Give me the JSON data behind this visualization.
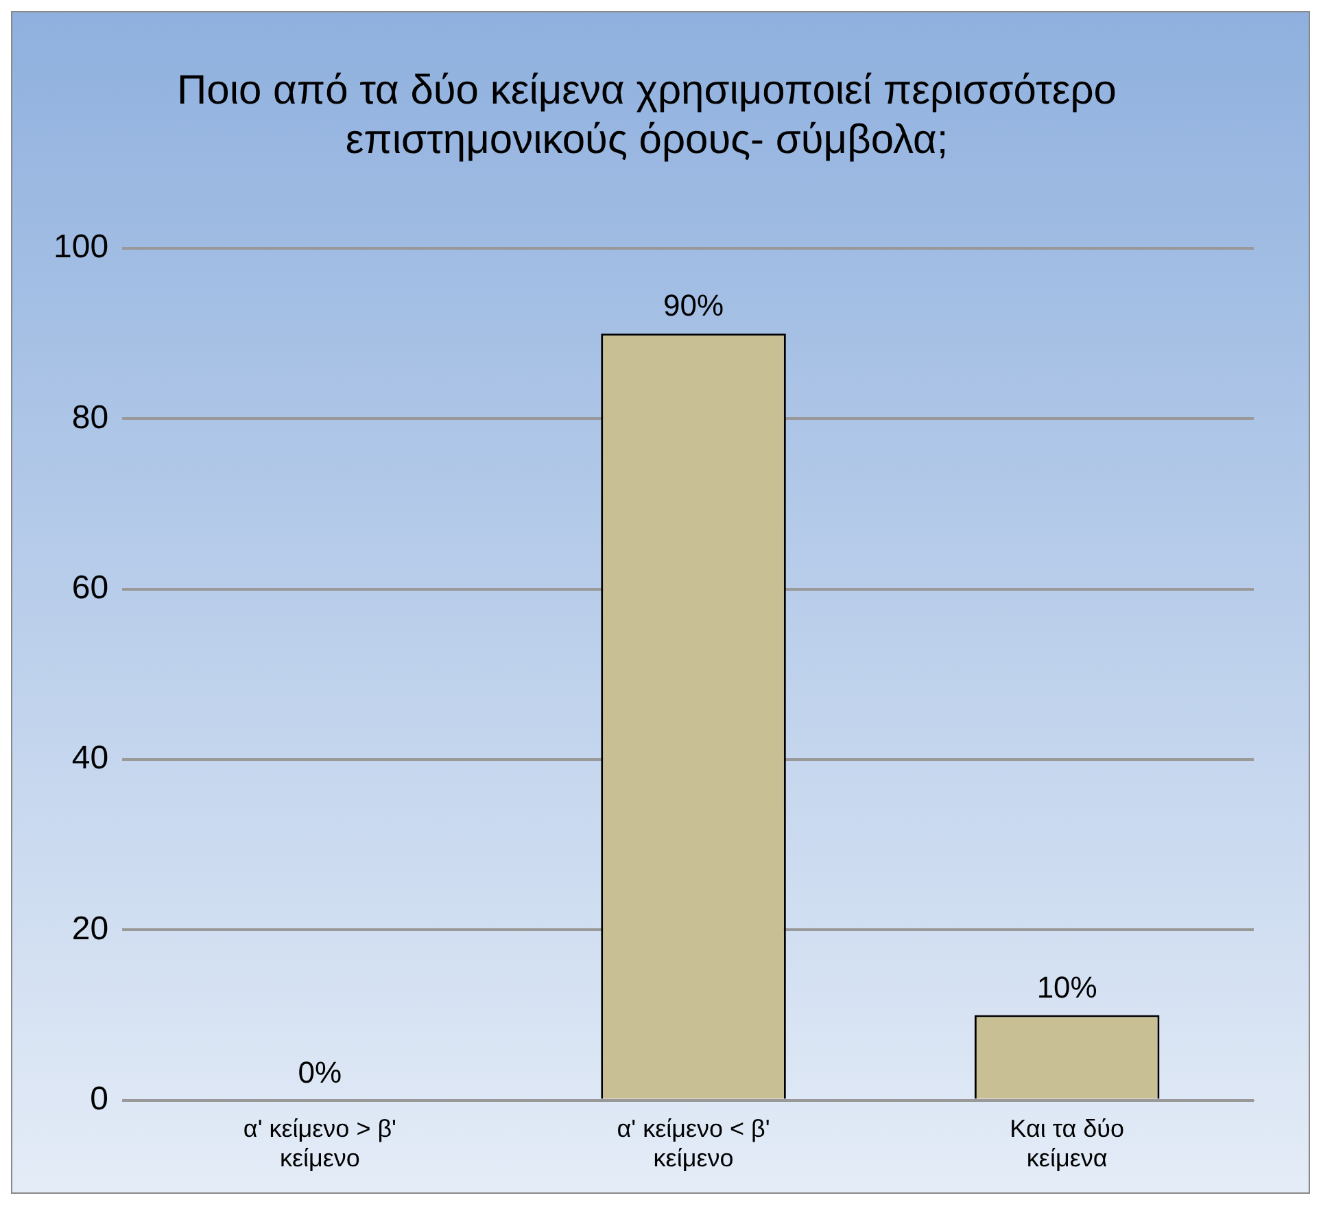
{
  "chart_data": {
    "type": "bar",
    "title": "Ποιο από τα δύο κείμενα χρησιμοποιεί περισσότερο επιστημονικούς όρους- σύμβολα;",
    "categories": [
      "α' κείμενο > β' κείμενο",
      "α' κείμενο < β' κείμενο",
      "Και τα δύο κείμενα"
    ],
    "values": [
      0,
      90,
      10
    ],
    "value_labels": [
      "0%",
      "90%",
      "10%"
    ],
    "color": "#c9bf94",
    "ylim": [
      0,
      100
    ],
    "yticks": [
      0,
      20,
      40,
      60,
      80,
      100
    ],
    "grid": "y",
    "legend": false
  }
}
